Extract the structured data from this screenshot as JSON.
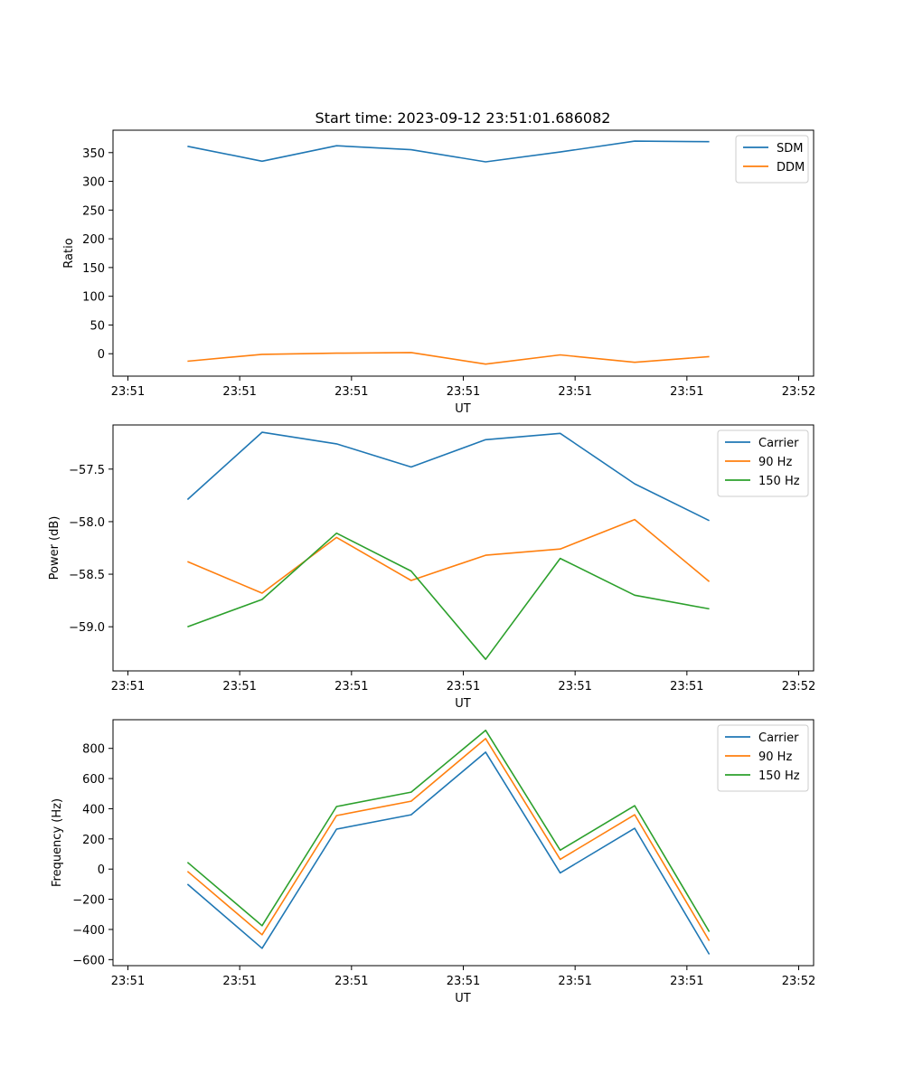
{
  "figure": {
    "title": "Start time: 2023-09-12 23:51:01.686082"
  },
  "colors": {
    "blue": "#1f77b4",
    "orange": "#ff7f0e",
    "green": "#2ca02c"
  },
  "chart_data": [
    {
      "type": "line",
      "title": "Start time: 2023-09-12 23:51:01.686082",
      "xlabel": "UT",
      "ylabel": "Ratio",
      "xlim": [
        -1,
        8.4
      ],
      "ylim": [
        -39,
        389
      ],
      "xticks": [
        -0.8,
        0.7,
        2.2,
        3.7,
        5.2,
        6.7,
        8.2
      ],
      "xtick_labels": [
        "23:51",
        "23:51",
        "23:51",
        "23:51",
        "23:51",
        "23:51",
        "23:52"
      ],
      "yticks": [
        0,
        50,
        100,
        150,
        200,
        250,
        300,
        350
      ],
      "ytick_labels": [
        "0",
        "50",
        "100",
        "150",
        "200",
        "250",
        "300",
        "350"
      ],
      "legend_position": "top-right",
      "x": [
        0,
        1,
        2,
        3,
        4,
        5,
        6,
        7
      ],
      "series": [
        {
          "name": "SDM",
          "color": "#1f77b4",
          "values": [
            361,
            335,
            362,
            355,
            334,
            351,
            370,
            369
          ]
        },
        {
          "name": "DDM",
          "color": "#ff7f0e",
          "values": [
            -13,
            -1,
            1,
            2,
            -18,
            -2,
            -15,
            -5
          ]
        }
      ]
    },
    {
      "type": "line",
      "xlabel": "UT",
      "ylabel": "Power (dB)",
      "xlim": [
        -1,
        8.4
      ],
      "ylim": [
        -59.42,
        -57.08
      ],
      "xticks": [
        -0.8,
        0.7,
        2.2,
        3.7,
        5.2,
        6.7,
        8.2
      ],
      "xtick_labels": [
        "23:51",
        "23:51",
        "23:51",
        "23:51",
        "23:51",
        "23:51",
        "23:52"
      ],
      "yticks": [
        -59.0,
        -58.5,
        -58.0,
        -57.5
      ],
      "ytick_labels": [
        "−59.0",
        "−58.5",
        "−58.0",
        "−57.5"
      ],
      "legend_position": "top-right",
      "x": [
        0,
        1,
        2,
        3,
        4,
        5,
        6,
        7
      ],
      "series": [
        {
          "name": "Carrier",
          "color": "#1f77b4",
          "values": [
            -57.79,
            -57.15,
            -57.26,
            -57.48,
            -57.22,
            -57.16,
            -57.64,
            -57.99
          ]
        },
        {
          "name": "90 Hz",
          "color": "#ff7f0e",
          "values": [
            -58.38,
            -58.68,
            -58.15,
            -58.56,
            -58.32,
            -58.26,
            -57.98,
            -58.57
          ]
        },
        {
          "name": "150 Hz",
          "color": "#2ca02c",
          "values": [
            -59.0,
            -58.74,
            -58.11,
            -58.47,
            -59.31,
            -58.35,
            -58.7,
            -58.83
          ]
        }
      ]
    },
    {
      "type": "line",
      "xlabel": "UT",
      "ylabel": "Frequency (Hz)",
      "xlim": [
        -1,
        8.4
      ],
      "ylim": [
        -640,
        990
      ],
      "xticks": [
        -0.8,
        0.7,
        2.2,
        3.7,
        5.2,
        6.7,
        8.2
      ],
      "xtick_labels": [
        "23:51",
        "23:51",
        "23:51",
        "23:51",
        "23:51",
        "23:51",
        "23:52"
      ],
      "yticks": [
        -600,
        -400,
        -200,
        0,
        200,
        400,
        600,
        800
      ],
      "ytick_labels": [
        "−600",
        "−400",
        "−200",
        "0",
        "200",
        "400",
        "600",
        "800"
      ],
      "legend_position": "top-right",
      "x": [
        0,
        1,
        2,
        3,
        4,
        5,
        6,
        7
      ],
      "series": [
        {
          "name": "Carrier",
          "color": "#1f77b4",
          "values": [
            -100,
            -525,
            265,
            360,
            775,
            -25,
            270,
            -565
          ]
        },
        {
          "name": "90 Hz",
          "color": "#ff7f0e",
          "values": [
            -15,
            -435,
            355,
            450,
            865,
            65,
            360,
            -475
          ]
        },
        {
          "name": "150 Hz",
          "color": "#2ca02c",
          "values": [
            45,
            -375,
            415,
            510,
            920,
            125,
            420,
            -415
          ]
        }
      ]
    }
  ]
}
